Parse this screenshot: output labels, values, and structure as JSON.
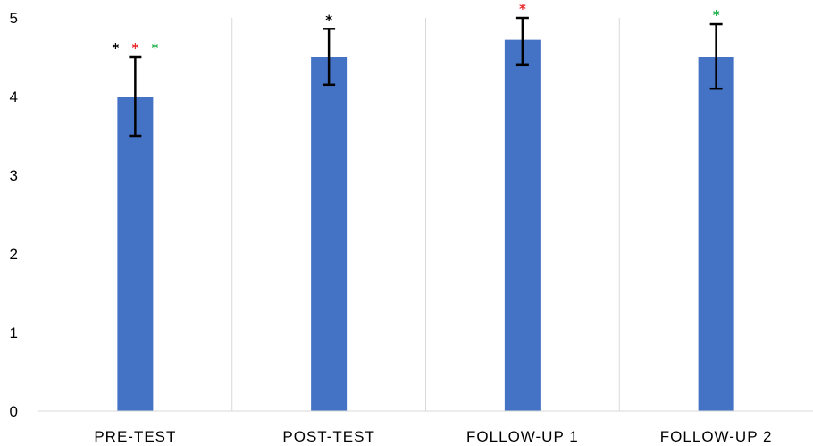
{
  "chart_data": {
    "type": "bar",
    "categories": [
      "PRE-TEST",
      "POST-TEST",
      "FOLLOW-UP 1",
      "FOLLOW-UP 2"
    ],
    "values": [
      4.0,
      4.5,
      4.72,
      4.5
    ],
    "error_low": [
      3.5,
      4.15,
      4.4,
      4.1
    ],
    "error_high": [
      4.5,
      4.86,
      5.0,
      4.92
    ],
    "ylim": [
      0,
      5
    ],
    "yticks": [
      "0",
      "1",
      "2",
      "3",
      "4",
      "5"
    ],
    "grid": "vertical category separators",
    "bar_color": "#4472c4",
    "significance_markers": [
      [
        {
          "text": "*",
          "color": "#000000"
        },
        {
          "text": "*",
          "color": "#e8262a"
        },
        {
          "text": "*",
          "color": "#22b14c"
        }
      ],
      [
        {
          "text": "*",
          "color": "#000000"
        }
      ],
      [
        {
          "text": "*",
          "color": "#e8262a"
        }
      ],
      [
        {
          "text": "*",
          "color": "#22b14c"
        }
      ]
    ]
  }
}
